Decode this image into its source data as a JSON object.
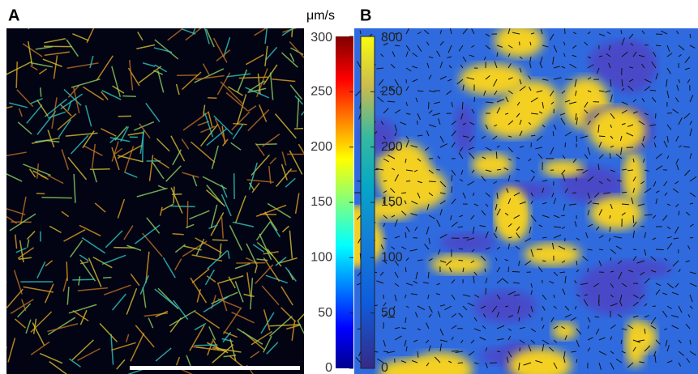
{
  "panels": [
    {
      "label": "A",
      "colorbar": {
        "unit": "μm/s",
        "lim": [
          0,
          300
        ],
        "ticks": [
          0,
          50,
          100,
          150,
          200,
          250,
          300
        ]
      }
    },
    {
      "label": "B",
      "colorbar": {
        "lim": [
          0,
          300
        ],
        "ticks": [
          0,
          50,
          100,
          150,
          200,
          250,
          300
        ]
      }
    }
  ]
}
